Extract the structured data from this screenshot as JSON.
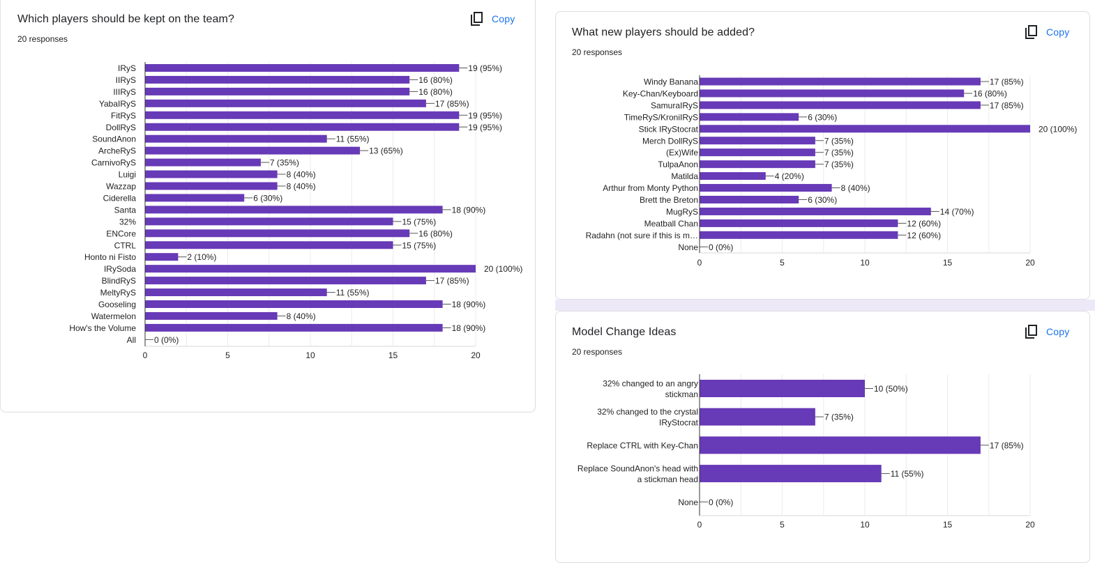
{
  "colors": {
    "bar": "#673ab7",
    "copy": "#1a73e8",
    "grid": "#ebebeb",
    "axis": "#333333",
    "gap": "#ede8f7"
  },
  "copy_label": "Copy",
  "chart_data": [
    {
      "type": "bar",
      "orientation": "horizontal",
      "title": "Which players should be kept on the team?",
      "responses": "20 responses",
      "categories": [
        "IRyS",
        "IIRyS",
        "IIIRyS",
        "YabaIRyS",
        "FitRyS",
        "DollRyS",
        "SoundAnon",
        "ArcheRyS",
        "CarnivoRyS",
        "Luigi",
        "Wazzap",
        "Ciderella",
        "Santa",
        "32%",
        "ENCore",
        "CTRL",
        "Honto ni Fisto",
        "IRySoda",
        "BlindRyS",
        "MeltyRyS",
        "Gooseling",
        "Watermelon",
        "How's the Volume",
        "All"
      ],
      "values": [
        19,
        16,
        16,
        17,
        19,
        19,
        11,
        13,
        7,
        8,
        8,
        6,
        18,
        15,
        16,
        15,
        2,
        20,
        17,
        11,
        18,
        8,
        18,
        0
      ],
      "data_labels": [
        "19 (95%)",
        "16 (80%)",
        "16 (80%)",
        "17 (85%)",
        "19 (95%)",
        "19 (95%)",
        "11 (55%)",
        "13 (65%)",
        "7 (35%)",
        "8 (40%)",
        "8 (40%)",
        "6 (30%)",
        "18 (90%)",
        "15 (75%)",
        "16 (80%)",
        "15 (75%)",
        "2 (10%)",
        "20 (100%)",
        "17 (85%)",
        "11 (55%)",
        "18 (90%)",
        "8 (40%)",
        "18 (90%)",
        "0 (0%)"
      ],
      "xlim": [
        0,
        20
      ],
      "xticks": [
        "0",
        "5",
        "10",
        "15",
        "20"
      ],
      "grid": true,
      "xlabel": "",
      "ylabel": ""
    },
    {
      "type": "bar",
      "orientation": "horizontal",
      "title": "What new players should be added?",
      "responses": "20 responses",
      "categories": [
        "Windy Banana",
        "Key-Chan/Keyboard",
        "SamuraIRyS",
        "TimeRyS/KroniIRyS",
        "Stick IRyStocrat",
        "Merch DollRyS",
        "(Ex)Wife",
        "TulpaAnon",
        "Matilda",
        "Arthur from Monty Python",
        "Brett the Breton",
        "MugRyS",
        "Meatball Chan",
        "Radahn (not sure if this is m…",
        "None"
      ],
      "values": [
        17,
        16,
        17,
        6,
        20,
        7,
        7,
        7,
        4,
        8,
        6,
        14,
        12,
        12,
        0
      ],
      "data_labels": [
        "17 (85%)",
        "16 (80%)",
        "17 (85%)",
        "6 (30%)",
        "20 (100%)",
        "7 (35%)",
        "7 (35%)",
        "7 (35%)",
        "4 (20%)",
        "8 (40%)",
        "6 (30%)",
        "14 (70%)",
        "12 (60%)",
        "12 (60%)",
        "0 (0%)"
      ],
      "xlim": [
        0,
        20
      ],
      "xticks": [
        "0",
        "5",
        "10",
        "15",
        "20"
      ],
      "grid": true,
      "xlabel": "",
      "ylabel": ""
    },
    {
      "type": "bar",
      "orientation": "horizontal",
      "title": "Model Change Ideas",
      "responses": "20 responses",
      "categories": [
        [
          "32% changed to an angry",
          "stickman"
        ],
        [
          "32% changed to the crystal",
          "IRyStocrat"
        ],
        [
          "Replace CTRL with Key-Chan"
        ],
        [
          "Replace SoundAnon's head with",
          "a stickman head"
        ],
        [
          "None"
        ]
      ],
      "values": [
        10,
        7,
        17,
        11,
        0
      ],
      "data_labels": [
        "10 (50%)",
        "7 (35%)",
        "17 (85%)",
        "11 (55%)",
        "0 (0%)"
      ],
      "xlim": [
        0,
        20
      ],
      "xticks": [
        "0",
        "5",
        "10",
        "15",
        "20"
      ],
      "grid": true,
      "xlabel": "",
      "ylabel": ""
    }
  ]
}
